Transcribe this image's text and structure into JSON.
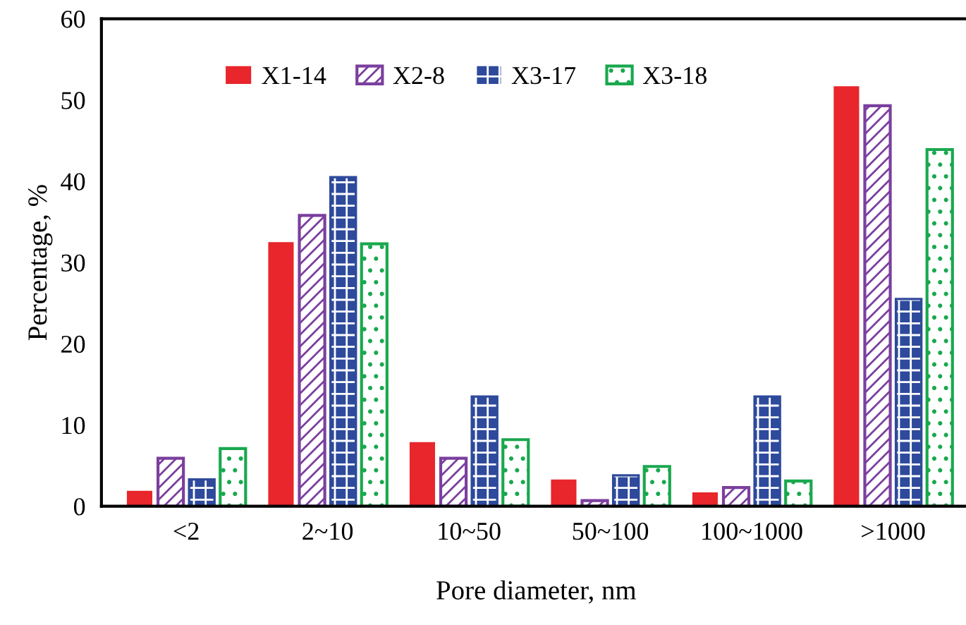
{
  "chart_data": {
    "type": "bar",
    "xlabel": "Pore diameter, nm",
    "ylabel": "Percentage, %",
    "categories": [
      "<2",
      "2~10",
      "10~50",
      "50~100",
      "100~1000",
      ">1000"
    ],
    "series": [
      {
        "name": "X1-14",
        "color": "#e8262b",
        "values": [
          1.9,
          32.5,
          7.9,
          3.3,
          1.7,
          51.7
        ]
      },
      {
        "name": "X2-8",
        "color": "#7b3f9e",
        "values": [
          5.9,
          35.8,
          5.9,
          0.7,
          2.3,
          49.3
        ]
      },
      {
        "name": "X3-17",
        "color": "#2e4a9c",
        "values": [
          3.3,
          40.5,
          13.5,
          3.8,
          13.5,
          25.5
        ]
      },
      {
        "name": "X3-18",
        "color": "#19a84e",
        "values": [
          7.1,
          32.3,
          8.2,
          4.9,
          3.1,
          43.9
        ]
      }
    ],
    "ylim": [
      0,
      60
    ],
    "yticks": [
      0,
      10,
      20,
      30,
      40,
      50,
      60
    ],
    "grid": false,
    "legend": "top"
  }
}
